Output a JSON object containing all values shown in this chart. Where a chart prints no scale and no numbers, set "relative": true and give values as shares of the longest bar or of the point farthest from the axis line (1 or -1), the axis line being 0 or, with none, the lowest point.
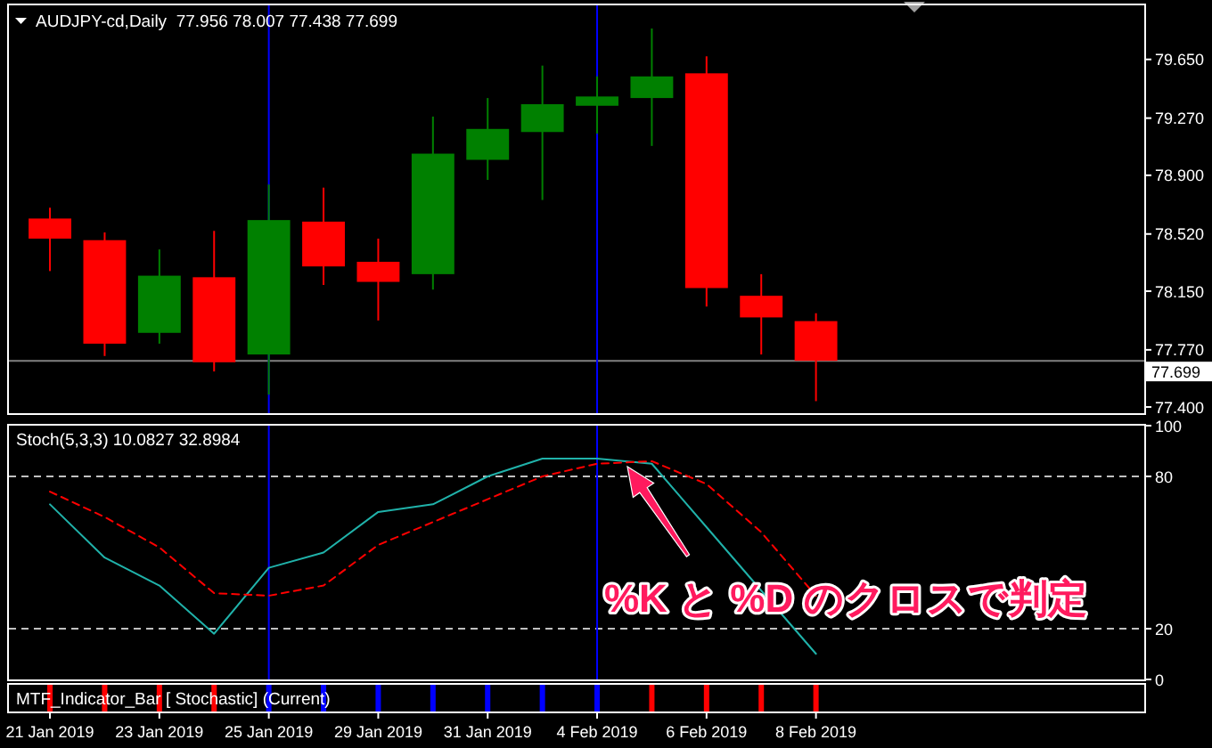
{
  "chart_data": [
    {
      "type": "candlestick",
      "title": "AUDJPY-cd,Daily  77.956 78.007 77.438 77.699",
      "categories": [
        "21 Jan 2019",
        null,
        "23 Jan 2019",
        null,
        "25 Jan 2019",
        null,
        "29 Jan 2019",
        null,
        "31 Jan 2019",
        null,
        "4 Feb 2019",
        null,
        "6 Feb 2019",
        null,
        "8 Feb 2019",
        null,
        null,
        null,
        null,
        null
      ],
      "ohlc": [
        [
          78.62,
          78.69,
          78.28,
          78.49
        ],
        [
          78.48,
          78.53,
          77.73,
          77.81
        ],
        [
          77.88,
          78.42,
          77.81,
          78.25
        ],
        [
          78.24,
          78.54,
          77.63,
          77.69
        ],
        [
          77.74,
          78.84,
          77.48,
          78.61
        ],
        [
          78.6,
          78.82,
          78.19,
          78.31
        ],
        [
          78.34,
          78.49,
          77.96,
          78.21
        ],
        [
          78.26,
          79.28,
          78.16,
          79.04
        ],
        [
          79.0,
          79.4,
          78.87,
          79.2
        ],
        [
          79.18,
          79.61,
          78.74,
          79.36
        ],
        [
          79.35,
          79.54,
          79.17,
          79.41
        ],
        [
          79.4,
          79.85,
          79.09,
          79.54
        ],
        [
          79.56,
          79.67,
          78.05,
          78.17
        ],
        [
          78.12,
          78.26,
          77.74,
          77.98
        ],
        [
          77.956,
          78.007,
          77.438,
          77.699
        ],
        null,
        null,
        null,
        null,
        null
      ],
      "colors": [
        "#ff0000",
        "#ff0000",
        "#008000",
        "#ff0000",
        "#008000",
        "#ff0000",
        "#ff0000",
        "#008000",
        "#008000",
        "#008000",
        "#008000",
        "#008000",
        "#ff0000",
        "#ff0000",
        "#ff0000",
        null,
        null,
        null,
        null,
        null
      ],
      "ylim": [
        77.36,
        80.0
      ],
      "yticks": [
        {
          "value": 77.4,
          "label": "77.400"
        },
        {
          "value": 77.77,
          "label": "77.770"
        },
        {
          "value": 78.15,
          "label": "78.150"
        },
        {
          "value": 78.52,
          "label": "78.520"
        },
        {
          "value": 78.9,
          "label": "78.900"
        },
        {
          "value": 79.27,
          "label": "79.270"
        },
        {
          "value": 79.65,
          "label": "79.650"
        }
      ],
      "ref_lines": [
        {
          "axis": "y",
          "value": 77.699,
          "label": "77.699",
          "color": "#808080"
        },
        {
          "axis": "x",
          "value": "25 Jan 2019",
          "color": "#0000ff"
        },
        {
          "axis": "x",
          "value": "4 Feb 2019",
          "color": "#0000ff"
        }
      ],
      "tick_labels": "y"
    },
    {
      "type": "line",
      "title": "Stoch(5,3,3) 10.0827 32.8984",
      "categories": [
        "21 Jan 2019",
        null,
        "23 Jan 2019",
        null,
        "25 Jan 2019",
        null,
        "29 Jan 2019",
        null,
        "31 Jan 2019",
        null,
        "4 Feb 2019",
        null,
        "6 Feb 2019",
        null,
        "8 Feb 2019",
        null,
        null,
        null,
        null,
        null
      ],
      "series": [
        {
          "color": "#20b2aa",
          "values": [
            69,
            48,
            37,
            18,
            44,
            50,
            66,
            69,
            80,
            87,
            87,
            85,
            60,
            35,
            10.0827,
            null,
            null,
            null,
            null,
            null
          ]
        },
        {
          "color": "#ff0000",
          "line_style": "dashed",
          "values": [
            74,
            64,
            52,
            34,
            33,
            37,
            53,
            62,
            71,
            80,
            85,
            86,
            77,
            58,
            32.8984,
            null,
            null,
            null,
            null,
            null
          ]
        }
      ],
      "ylim": [
        0,
        100
      ],
      "yticks": [
        0,
        20,
        80,
        100
      ],
      "ref_lines": [
        {
          "axis": "y",
          "value": 80,
          "color": "#c0c0c0",
          "line_style": "dashed"
        },
        {
          "axis": "y",
          "value": 20,
          "color": "#c0c0c0",
          "line_style": "dashed"
        },
        {
          "axis": "x",
          "value": "25 Jan 2019",
          "color": "#0000ff"
        },
        {
          "axis": "x",
          "value": "4 Feb 2019",
          "color": "#0000ff"
        }
      ],
      "annotations": [
        "%K と %D のクロスで判定"
      ],
      "tick_labels": "y"
    },
    {
      "type": "bar",
      "title": "MTF_Indicator_Bar [ Stochastic] (Current)",
      "categories": [
        "21 Jan 2019",
        null,
        "23 Jan 2019",
        null,
        "25 Jan 2019",
        null,
        "29 Jan 2019",
        null,
        "31 Jan 2019",
        null,
        "4 Feb 2019",
        null,
        "6 Feb 2019",
        null,
        "8 Feb 2019",
        null,
        null,
        null,
        null,
        null
      ],
      "values": [
        1,
        1,
        1,
        1,
        1,
        1,
        1,
        1,
        1,
        1,
        1,
        1,
        1,
        1,
        1,
        null,
        null,
        null,
        null,
        null
      ],
      "colors": [
        "#ff0000",
        "#ff0000",
        "#ff0000",
        "#ff0000",
        "#0000ff",
        "#0000ff",
        "#0000ff",
        "#0000ff",
        "#0000ff",
        "#0000ff",
        "#0000ff",
        "#ff0000",
        "#ff0000",
        "#ff0000",
        "#ff0000",
        null,
        null,
        null,
        null,
        null
      ],
      "relative": true,
      "tick_labels": "x"
    }
  ]
}
